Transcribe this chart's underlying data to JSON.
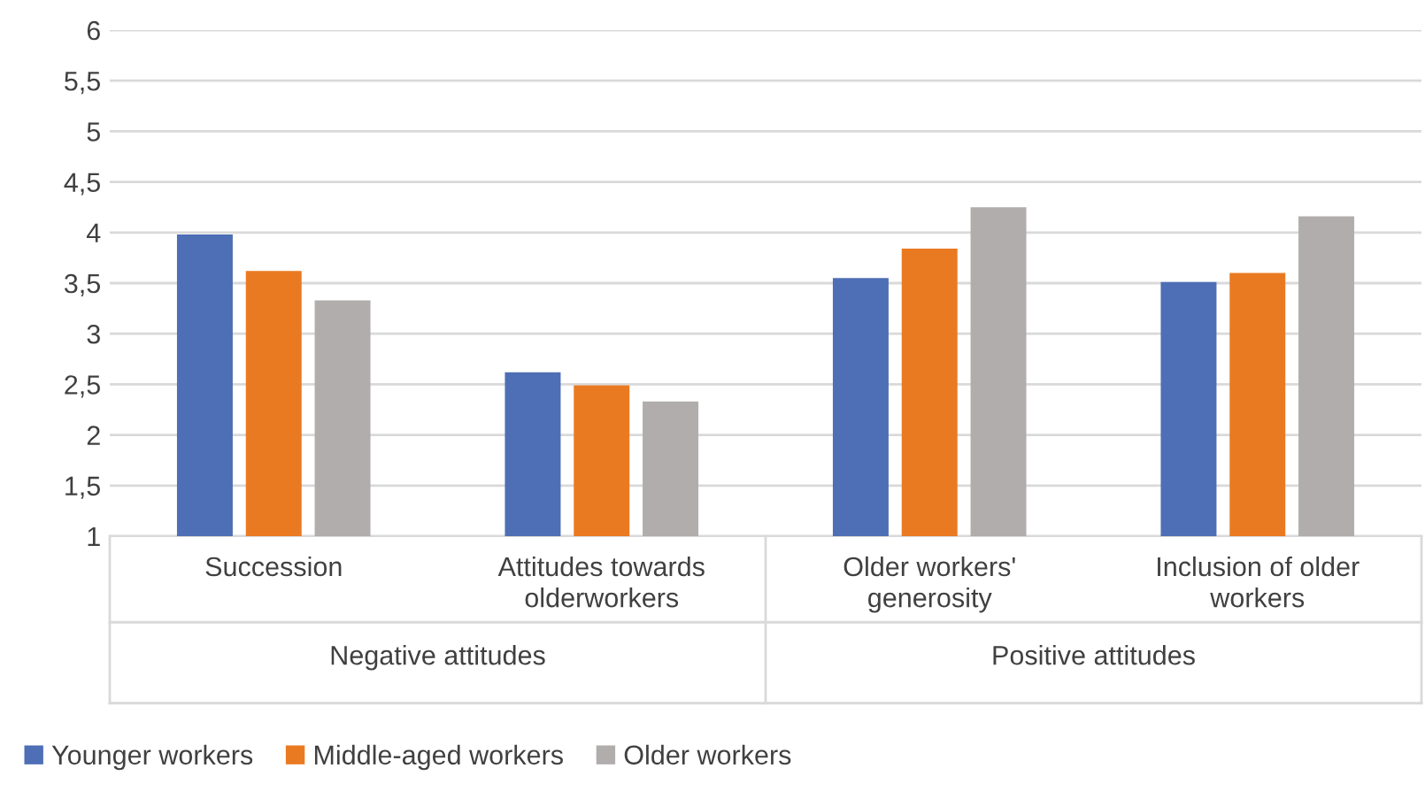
{
  "chart_data": {
    "type": "bar",
    "categories": [
      "Succession",
      "Attitudes towards\nolderworkers",
      "Older workers'\ngenerosity",
      "Inclusion of older\nworkers"
    ],
    "series": [
      {
        "name": "Younger workers",
        "color": "#4e6fb5",
        "values": [
          3.98,
          2.62,
          3.55,
          3.51
        ]
      },
      {
        "name": "Middle-aged workers",
        "color": "#ea7a22",
        "values": [
          3.62,
          2.49,
          3.84,
          3.6
        ]
      },
      {
        "name": "Older workers",
        "color": "#b0adac",
        "values": [
          3.33,
          2.33,
          4.25,
          4.16
        ]
      }
    ],
    "ylim": [
      1,
      6
    ],
    "yticks": [
      1,
      {
        "value": 1.5,
        "label": "1,5"
      },
      2,
      {
        "value": 2.5,
        "label": "2,5"
      },
      3,
      {
        "value": 3.5,
        "label": "3,5"
      },
      4,
      {
        "value": 4.5,
        "label": "4,5"
      },
      5,
      {
        "value": 5.5,
        "label": "5,5"
      },
      6
    ],
    "grid": "y",
    "legend": "bottom",
    "annotations": [
      "Negative attitudes",
      "Positive attitudes"
    ]
  }
}
